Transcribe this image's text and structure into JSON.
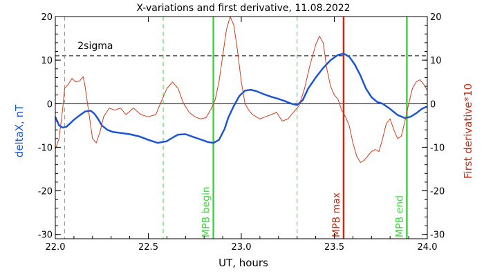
{
  "chart_data": {
    "type": "line",
    "title": "X-variations and first derivative, 11.08.2022",
    "xlabel": "UT, hours",
    "ylabel_left": "deltaX, nT",
    "ylabel_right": "First derivative*10",
    "xlim": [
      22.0,
      24.0
    ],
    "ylim": [
      -31,
      20
    ],
    "xticks": [
      "22.0",
      "22.5",
      "23.0",
      "23.5",
      "24.0"
    ],
    "xtick_values": [
      22.0,
      22.5,
      23.0,
      23.5,
      24.0
    ],
    "yticks": [
      "20",
      "10",
      "0",
      "-10",
      "-20",
      "-30"
    ],
    "ytick_values": [
      20,
      10,
      0,
      -10,
      -20,
      -30
    ],
    "sigma_level": 11,
    "sigma_label": "2sigma",
    "zero_line": 0,
    "colors": {
      "deltaX": "#1b55d6",
      "derivative": "#d43a1c",
      "green_lines": "#33dd33",
      "red_line": "#cc2a10",
      "left_label": "#1b55d6",
      "right_label": "#cc2a10"
    },
    "dashed_verticals": [
      22.05,
      22.58,
      23.3
    ],
    "markers": [
      {
        "x": 22.85,
        "label": "MPB begin",
        "color": "#33dd33"
      },
      {
        "x": 23.55,
        "label": "MPB max",
        "color": "#cc2a10"
      },
      {
        "x": 23.89,
        "label": "MPB end",
        "color": "#33dd33"
      }
    ],
    "series": [
      {
        "name": "deltaX",
        "x": [
          22.0,
          22.02,
          22.04,
          22.06,
          22.08,
          22.1,
          22.13,
          22.16,
          22.19,
          22.21,
          22.23,
          22.25,
          22.28,
          22.31,
          22.35,
          22.4,
          22.45,
          22.5,
          22.55,
          22.6,
          22.63,
          22.66,
          22.7,
          22.74,
          22.78,
          22.82,
          22.85,
          22.88,
          22.91,
          22.93,
          22.96,
          22.99,
          23.02,
          23.05,
          23.08,
          23.12,
          23.16,
          23.2,
          23.24,
          23.27,
          23.3,
          23.33,
          23.36,
          23.4,
          23.44,
          23.48,
          23.52,
          23.55,
          23.58,
          23.61,
          23.64,
          23.67,
          23.7,
          23.73,
          23.76,
          23.8,
          23.84,
          23.88,
          23.91,
          23.94,
          23.97,
          24.0
        ],
        "values": [
          -3.0,
          -5.0,
          -5.5,
          -5.3,
          -4.5,
          -3.7,
          -2.7,
          -1.8,
          -1.6,
          -2.3,
          -3.5,
          -5.0,
          -6.0,
          -6.5,
          -6.7,
          -7.0,
          -7.5,
          -8.3,
          -9.0,
          -8.6,
          -7.8,
          -7.1,
          -7.0,
          -7.6,
          -8.2,
          -8.8,
          -9.0,
          -8.3,
          -5.8,
          -3.2,
          -0.5,
          1.8,
          3.0,
          3.2,
          2.9,
          2.2,
          1.6,
          1.1,
          0.5,
          0.0,
          -0.3,
          0.8,
          3.5,
          6.0,
          8.2,
          10.0,
          11.2,
          11.5,
          10.8,
          9.0,
          6.5,
          3.5,
          1.5,
          0.4,
          0.0,
          -1.2,
          -2.6,
          -3.3,
          -3.0,
          -2.2,
          -1.2,
          -0.6
        ]
      },
      {
        "name": "First derivative*10",
        "x": [
          22.0,
          22.02,
          22.04,
          22.05,
          22.07,
          22.09,
          22.11,
          22.13,
          22.15,
          22.16,
          22.18,
          22.2,
          22.22,
          22.24,
          22.26,
          22.29,
          22.32,
          22.35,
          22.38,
          22.42,
          22.46,
          22.5,
          22.54,
          22.57,
          22.6,
          22.63,
          22.66,
          22.69,
          22.72,
          22.75,
          22.78,
          22.81,
          22.84,
          22.86,
          22.88,
          22.9,
          22.92,
          22.94,
          22.96,
          22.98,
          23.0,
          23.02,
          23.04,
          23.06,
          23.08,
          23.1,
          23.13,
          23.16,
          23.19,
          23.22,
          23.25,
          23.28,
          23.31,
          23.34,
          23.37,
          23.4,
          23.42,
          23.44,
          23.46,
          23.48,
          23.5,
          23.52,
          23.54,
          23.56,
          23.58,
          23.6,
          23.62,
          23.64,
          23.66,
          23.68,
          23.7,
          23.72,
          23.74,
          23.76,
          23.78,
          23.8,
          23.82,
          23.84,
          23.86,
          23.88,
          23.9,
          23.92,
          23.94,
          23.96,
          23.98,
          24.0
        ],
        "values": [
          -10.5,
          -8.0,
          -1.0,
          3.5,
          4.5,
          5.8,
          5.0,
          5.2,
          6.2,
          4.0,
          -2.0,
          -8.0,
          -9.0,
          -6.5,
          -3.0,
          -1.0,
          -1.5,
          -1.0,
          -2.5,
          -1.0,
          -2.5,
          -3.0,
          -2.5,
          0.5,
          3.5,
          5.0,
          3.5,
          0.0,
          -2.0,
          -3.0,
          -3.5,
          -3.2,
          -1.0,
          1.0,
          5.0,
          11.0,
          17.0,
          20.0,
          18.0,
          12.0,
          5.0,
          0.0,
          -1.5,
          -2.5,
          -3.0,
          -3.5,
          -3.0,
          -2.5,
          -2.0,
          -4.0,
          -3.5,
          -2.0,
          -0.5,
          3.5,
          9.0,
          13.5,
          15.5,
          14.0,
          8.0,
          4.0,
          2.0,
          1.0,
          -1.5,
          -3.0,
          -5.0,
          -9.0,
          -12.0,
          -13.5,
          -13.0,
          -12.0,
          -11.0,
          -10.5,
          -11.0,
          -8.0,
          -4.5,
          -3.5,
          -6.0,
          -8.0,
          -7.5,
          -4.0,
          0.0,
          3.5,
          5.0,
          5.5,
          4.5,
          3.0
        ]
      }
    ]
  }
}
